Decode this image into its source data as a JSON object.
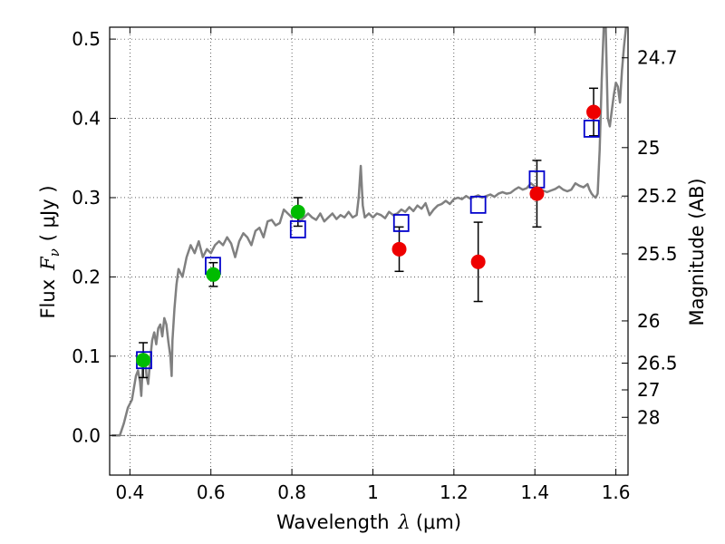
{
  "chart_data": {
    "type": "scatter",
    "xlabel": "Wavelength",
    "xlabel_symbol": "λ",
    "xlabel_unit": "(μm)",
    "ylabel": "Flux",
    "ylabel_symbol": "F",
    "ylabel_subscript": "ν",
    "ylabel_unit": "( μJy )",
    "right_ylabel": "Magnitude (AB)",
    "xlim": [
      0.35,
      1.63
    ],
    "ylim": [
      -0.05,
      0.515
    ],
    "grid": true,
    "x_ticks": [
      0.4,
      0.6,
      0.8,
      1.0,
      1.2,
      1.4,
      1.6
    ],
    "x_tick_labels": [
      "0.4",
      "0.6",
      "0.8",
      "1",
      "1.2",
      "1.4",
      "1.6"
    ],
    "y_ticks": [
      0.0,
      0.1,
      0.2,
      0.3,
      0.4,
      0.5
    ],
    "y_tick_labels": [
      "0.0",
      "0.1",
      "0.2",
      "0.3",
      "0.4",
      "0.5"
    ],
    "magnitude_ticks": [
      {
        "label": "24.7",
        "flux": 0.4764
      },
      {
        "label": "25",
        "flux": 0.3631
      },
      {
        "label": "25.2",
        "flux": 0.302
      },
      {
        "label": "25.5",
        "flux": 0.2291
      },
      {
        "label": "26",
        "flux": 0.1445
      },
      {
        "label": "26.5",
        "flux": 0.0912
      },
      {
        "label": "27",
        "flux": 0.0575
      },
      {
        "label": "28",
        "flux": 0.0229
      }
    ],
    "zero_line": 0.0,
    "series": [
      {
        "kind": "spectrum",
        "color": "#808080",
        "points": [
          [
            0.355,
            0.0
          ],
          [
            0.375,
            0.0
          ],
          [
            0.385,
            0.015
          ],
          [
            0.395,
            0.035
          ],
          [
            0.405,
            0.045
          ],
          [
            0.41,
            0.06
          ],
          [
            0.415,
            0.075
          ],
          [
            0.42,
            0.082
          ],
          [
            0.425,
            0.068
          ],
          [
            0.428,
            0.05
          ],
          [
            0.432,
            0.09
          ],
          [
            0.437,
            0.1
          ],
          [
            0.441,
            0.075
          ],
          [
            0.445,
            0.065
          ],
          [
            0.45,
            0.095
          ],
          [
            0.455,
            0.12
          ],
          [
            0.46,
            0.13
          ],
          [
            0.465,
            0.115
          ],
          [
            0.47,
            0.135
          ],
          [
            0.475,
            0.14
          ],
          [
            0.48,
            0.125
          ],
          [
            0.485,
            0.148
          ],
          [
            0.49,
            0.14
          ],
          [
            0.495,
            0.118
          ],
          [
            0.5,
            0.1
          ],
          [
            0.503,
            0.075
          ],
          [
            0.505,
            0.12
          ],
          [
            0.51,
            0.16
          ],
          [
            0.515,
            0.19
          ],
          [
            0.52,
            0.21
          ],
          [
            0.53,
            0.2
          ],
          [
            0.54,
            0.225
          ],
          [
            0.55,
            0.24
          ],
          [
            0.56,
            0.23
          ],
          [
            0.57,
            0.245
          ],
          [
            0.58,
            0.225
          ],
          [
            0.59,
            0.235
          ],
          [
            0.6,
            0.23
          ],
          [
            0.61,
            0.24
          ],
          [
            0.62,
            0.245
          ],
          [
            0.63,
            0.24
          ],
          [
            0.64,
            0.25
          ],
          [
            0.65,
            0.242
          ],
          [
            0.66,
            0.225
          ],
          [
            0.67,
            0.245
          ],
          [
            0.68,
            0.255
          ],
          [
            0.69,
            0.25
          ],
          [
            0.7,
            0.24
          ],
          [
            0.71,
            0.258
          ],
          [
            0.72,
            0.262
          ],
          [
            0.73,
            0.25
          ],
          [
            0.74,
            0.27
          ],
          [
            0.75,
            0.272
          ],
          [
            0.76,
            0.265
          ],
          [
            0.77,
            0.268
          ],
          [
            0.78,
            0.285
          ],
          [
            0.79,
            0.28
          ],
          [
            0.8,
            0.275
          ],
          [
            0.81,
            0.285
          ],
          [
            0.82,
            0.27
          ],
          [
            0.83,
            0.275
          ],
          [
            0.84,
            0.28
          ],
          [
            0.85,
            0.275
          ],
          [
            0.86,
            0.272
          ],
          [
            0.87,
            0.28
          ],
          [
            0.88,
            0.27
          ],
          [
            0.89,
            0.275
          ],
          [
            0.9,
            0.28
          ],
          [
            0.91,
            0.273
          ],
          [
            0.92,
            0.278
          ],
          [
            0.93,
            0.275
          ],
          [
            0.94,
            0.282
          ],
          [
            0.95,
            0.275
          ],
          [
            0.96,
            0.278
          ],
          [
            0.965,
            0.3
          ],
          [
            0.97,
            0.34
          ],
          [
            0.975,
            0.29
          ],
          [
            0.98,
            0.275
          ],
          [
            0.99,
            0.28
          ],
          [
            1.0,
            0.275
          ],
          [
            1.01,
            0.28
          ],
          [
            1.02,
            0.278
          ],
          [
            1.03,
            0.274
          ],
          [
            1.04,
            0.282
          ],
          [
            1.05,
            0.278
          ],
          [
            1.06,
            0.28
          ],
          [
            1.07,
            0.285
          ],
          [
            1.08,
            0.282
          ],
          [
            1.09,
            0.288
          ],
          [
            1.1,
            0.283
          ],
          [
            1.11,
            0.29
          ],
          [
            1.12,
            0.286
          ],
          [
            1.13,
            0.293
          ],
          [
            1.14,
            0.278
          ],
          [
            1.15,
            0.285
          ],
          [
            1.16,
            0.29
          ],
          [
            1.17,
            0.292
          ],
          [
            1.18,
            0.296
          ],
          [
            1.19,
            0.292
          ],
          [
            1.2,
            0.298
          ],
          [
            1.21,
            0.3
          ],
          [
            1.22,
            0.298
          ],
          [
            1.23,
            0.302
          ],
          [
            1.24,
            0.299
          ],
          [
            1.25,
            0.301
          ],
          [
            1.26,
            0.303
          ],
          [
            1.27,
            0.3
          ],
          [
            1.28,
            0.302
          ],
          [
            1.29,
            0.304
          ],
          [
            1.3,
            0.301
          ],
          [
            1.31,
            0.305
          ],
          [
            1.32,
            0.307
          ],
          [
            1.33,
            0.305
          ],
          [
            1.34,
            0.306
          ],
          [
            1.35,
            0.31
          ],
          [
            1.36,
            0.313
          ],
          [
            1.37,
            0.31
          ],
          [
            1.38,
            0.312
          ],
          [
            1.39,
            0.318
          ],
          [
            1.4,
            0.314
          ],
          [
            1.41,
            0.311
          ],
          [
            1.42,
            0.309
          ],
          [
            1.43,
            0.307
          ],
          [
            1.44,
            0.309
          ],
          [
            1.45,
            0.311
          ],
          [
            1.46,
            0.314
          ],
          [
            1.47,
            0.31
          ],
          [
            1.48,
            0.308
          ],
          [
            1.49,
            0.31
          ],
          [
            1.5,
            0.318
          ],
          [
            1.51,
            0.315
          ],
          [
            1.52,
            0.313
          ],
          [
            1.53,
            0.317
          ],
          [
            1.535,
            0.31
          ],
          [
            1.54,
            0.305
          ],
          [
            1.545,
            0.302
          ],
          [
            1.55,
            0.3
          ],
          [
            1.555,
            0.305
          ],
          [
            1.56,
            0.36
          ],
          [
            1.565,
            0.45
          ],
          [
            1.57,
            0.515
          ],
          [
            1.575,
            0.515
          ],
          [
            1.58,
            0.4
          ],
          [
            1.585,
            0.39
          ],
          [
            1.59,
            0.41
          ],
          [
            1.595,
            0.43
          ],
          [
            1.6,
            0.445
          ],
          [
            1.605,
            0.44
          ],
          [
            1.61,
            0.42
          ],
          [
            1.615,
            0.46
          ],
          [
            1.62,
            0.49
          ],
          [
            1.625,
            0.515
          ]
        ]
      },
      {
        "kind": "blue-squares",
        "color": "#0000cc",
        "x": [
          0.435,
          0.605,
          0.815,
          1.07,
          1.26,
          1.405,
          1.54
        ],
        "y": [
          0.095,
          0.214,
          0.26,
          0.268,
          0.291,
          0.323,
          0.387
        ]
      },
      {
        "kind": "green-circles",
        "color": "#00bb00",
        "x": [
          0.433,
          0.606,
          0.815
        ],
        "y": [
          0.095,
          0.203,
          0.282
        ],
        "err": [
          0.022,
          0.015,
          0.018
        ]
      },
      {
        "kind": "red-circles",
        "color": "#ee0000",
        "x": [
          1.065,
          1.26,
          1.405,
          1.545
        ],
        "y": [
          0.235,
          0.219,
          0.305,
          0.408
        ],
        "err": [
          0.028,
          0.05,
          0.042,
          0.03
        ]
      }
    ]
  }
}
